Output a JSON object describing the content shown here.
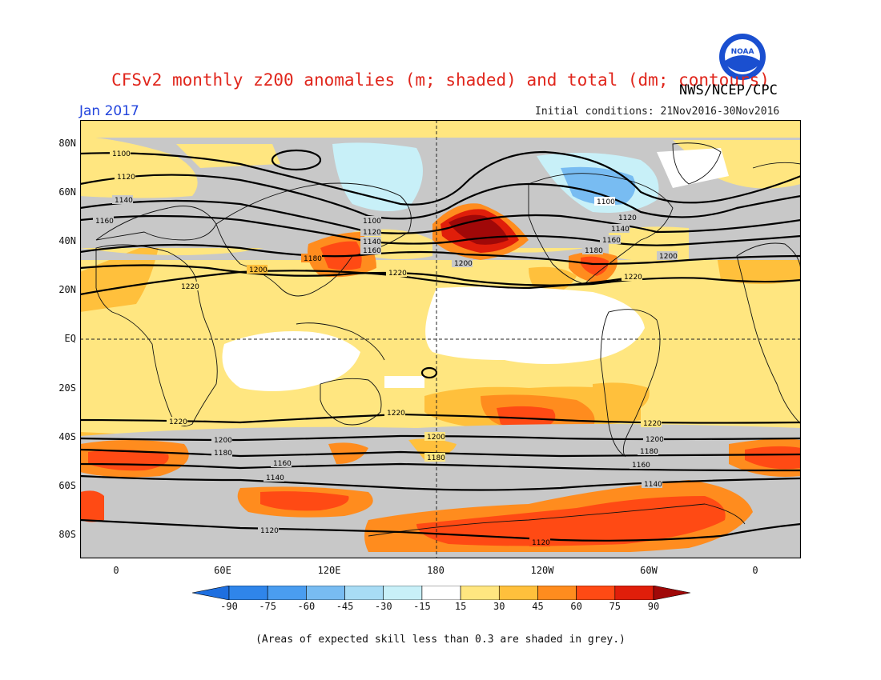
{
  "title": "CFSv2 monthly z200 anomalies (m; shaded) and total (dm; contours)",
  "organization": "NWS/NCEP/CPC",
  "logo_text": "NOAA",
  "month": "Jan 2017",
  "initial_conditions": "Initial conditions: 21Nov2016-30Nov2016",
  "lat_labels": [
    "80N",
    "60N",
    "40N",
    "20N",
    "EQ",
    "20S",
    "40S",
    "60S",
    "80S"
  ],
  "lon_labels": [
    "0",
    "60E",
    "120E",
    "180",
    "120W",
    "60W",
    "0"
  ],
  "colorbar": {
    "ticks": [
      "-90",
      "-75",
      "-60",
      "-45",
      "-30",
      "-15",
      "15",
      "30",
      "45",
      "60",
      "75",
      "90"
    ],
    "colors": [
      "#1e6fe0",
      "#2f85ea",
      "#4a9df0",
      "#78bcf2",
      "#a8dcf5",
      "#c8f0f8",
      "#ffffff",
      "#ffe680",
      "#ffc03c",
      "#ff8c1e",
      "#ff4a14",
      "#e01e0a",
      "#a00808"
    ]
  },
  "contour_labels": {
    "c1100": "1100",
    "c1120": "1120",
    "c1140": "1140",
    "c1160": "1160",
    "c1180": "1180",
    "c1200": "1200",
    "c1220": "1220"
  },
  "footnote": "(Areas of expected skill less than 0.3 are shaded in grey.)"
}
